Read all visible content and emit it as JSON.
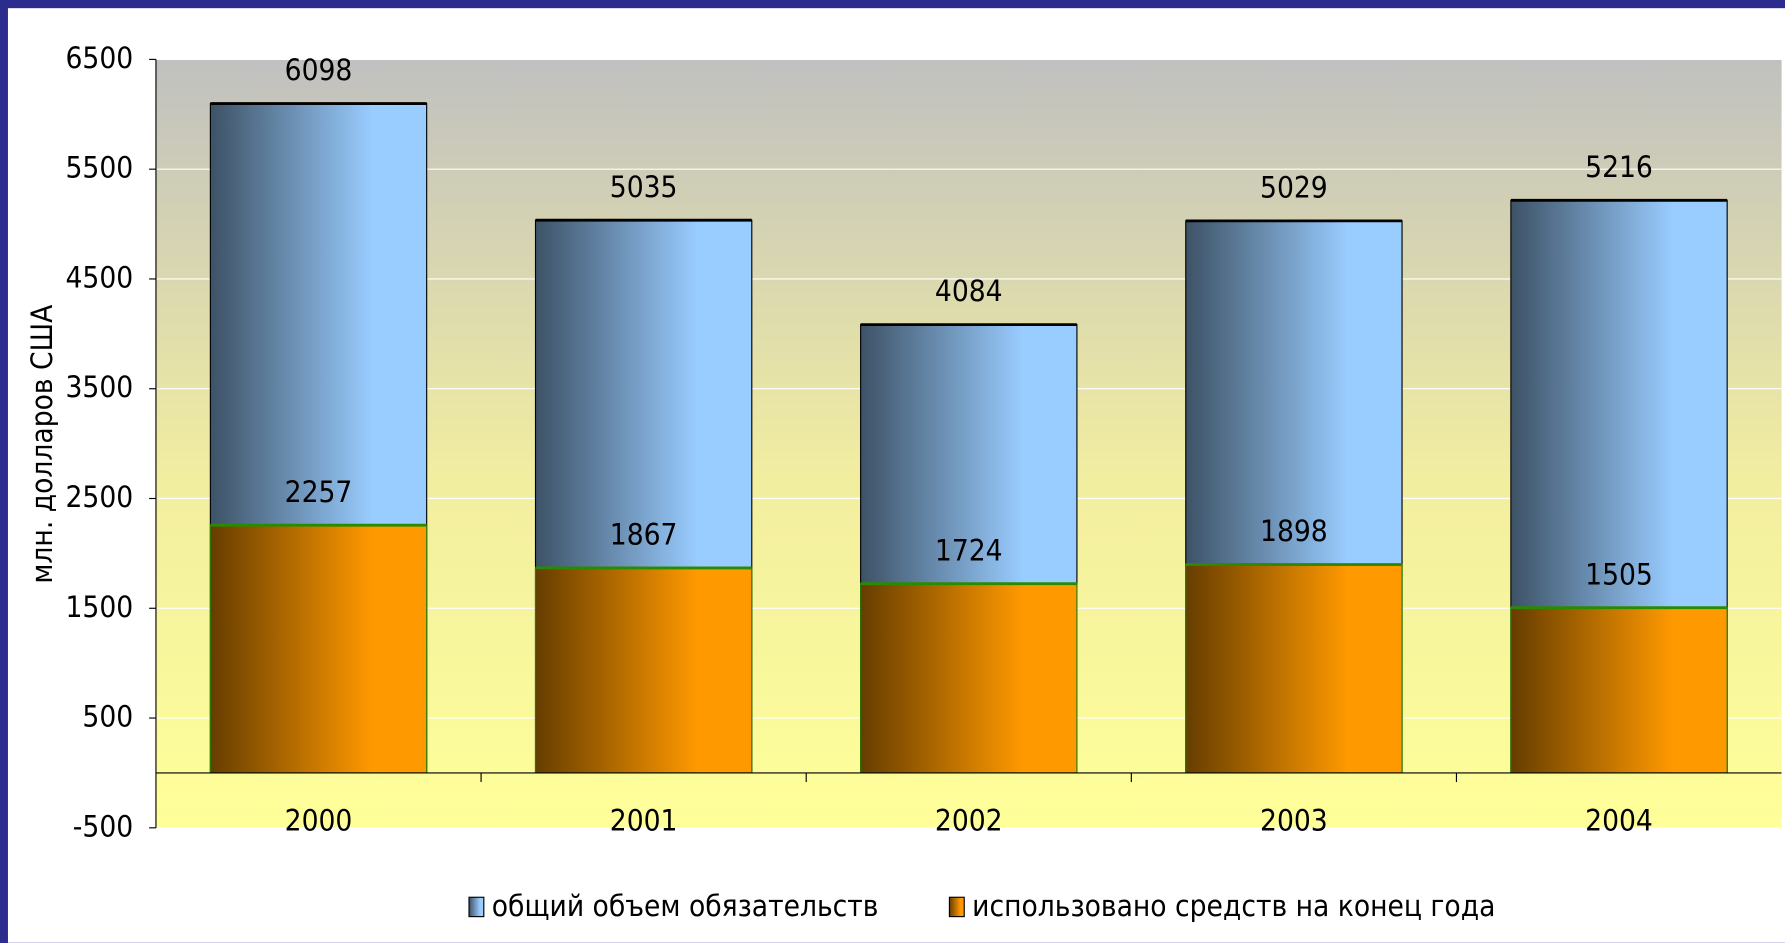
{
  "chart_data": {
    "type": "bar",
    "y_label": "млн. долларов США",
    "categories": [
      "2000",
      "2001",
      "2002",
      "2003",
      "2004"
    ],
    "series": [
      {
        "name": "общий объем обязательств",
        "color": "#99ccff",
        "values": [
          6098,
          5035,
          4084,
          5029,
          5216
        ]
      },
      {
        "name": "использовано средств на конец года",
        "color": "#ff9900",
        "values": [
          2257,
          1867,
          1724,
          1898,
          1505
        ]
      }
    ],
    "overlap": true,
    "ylim": [
      -500,
      6500
    ],
    "yticks": [
      -500,
      500,
      1500,
      2500,
      3500,
      4500,
      5500,
      6500
    ],
    "grid": true,
    "legend": "bottom"
  }
}
